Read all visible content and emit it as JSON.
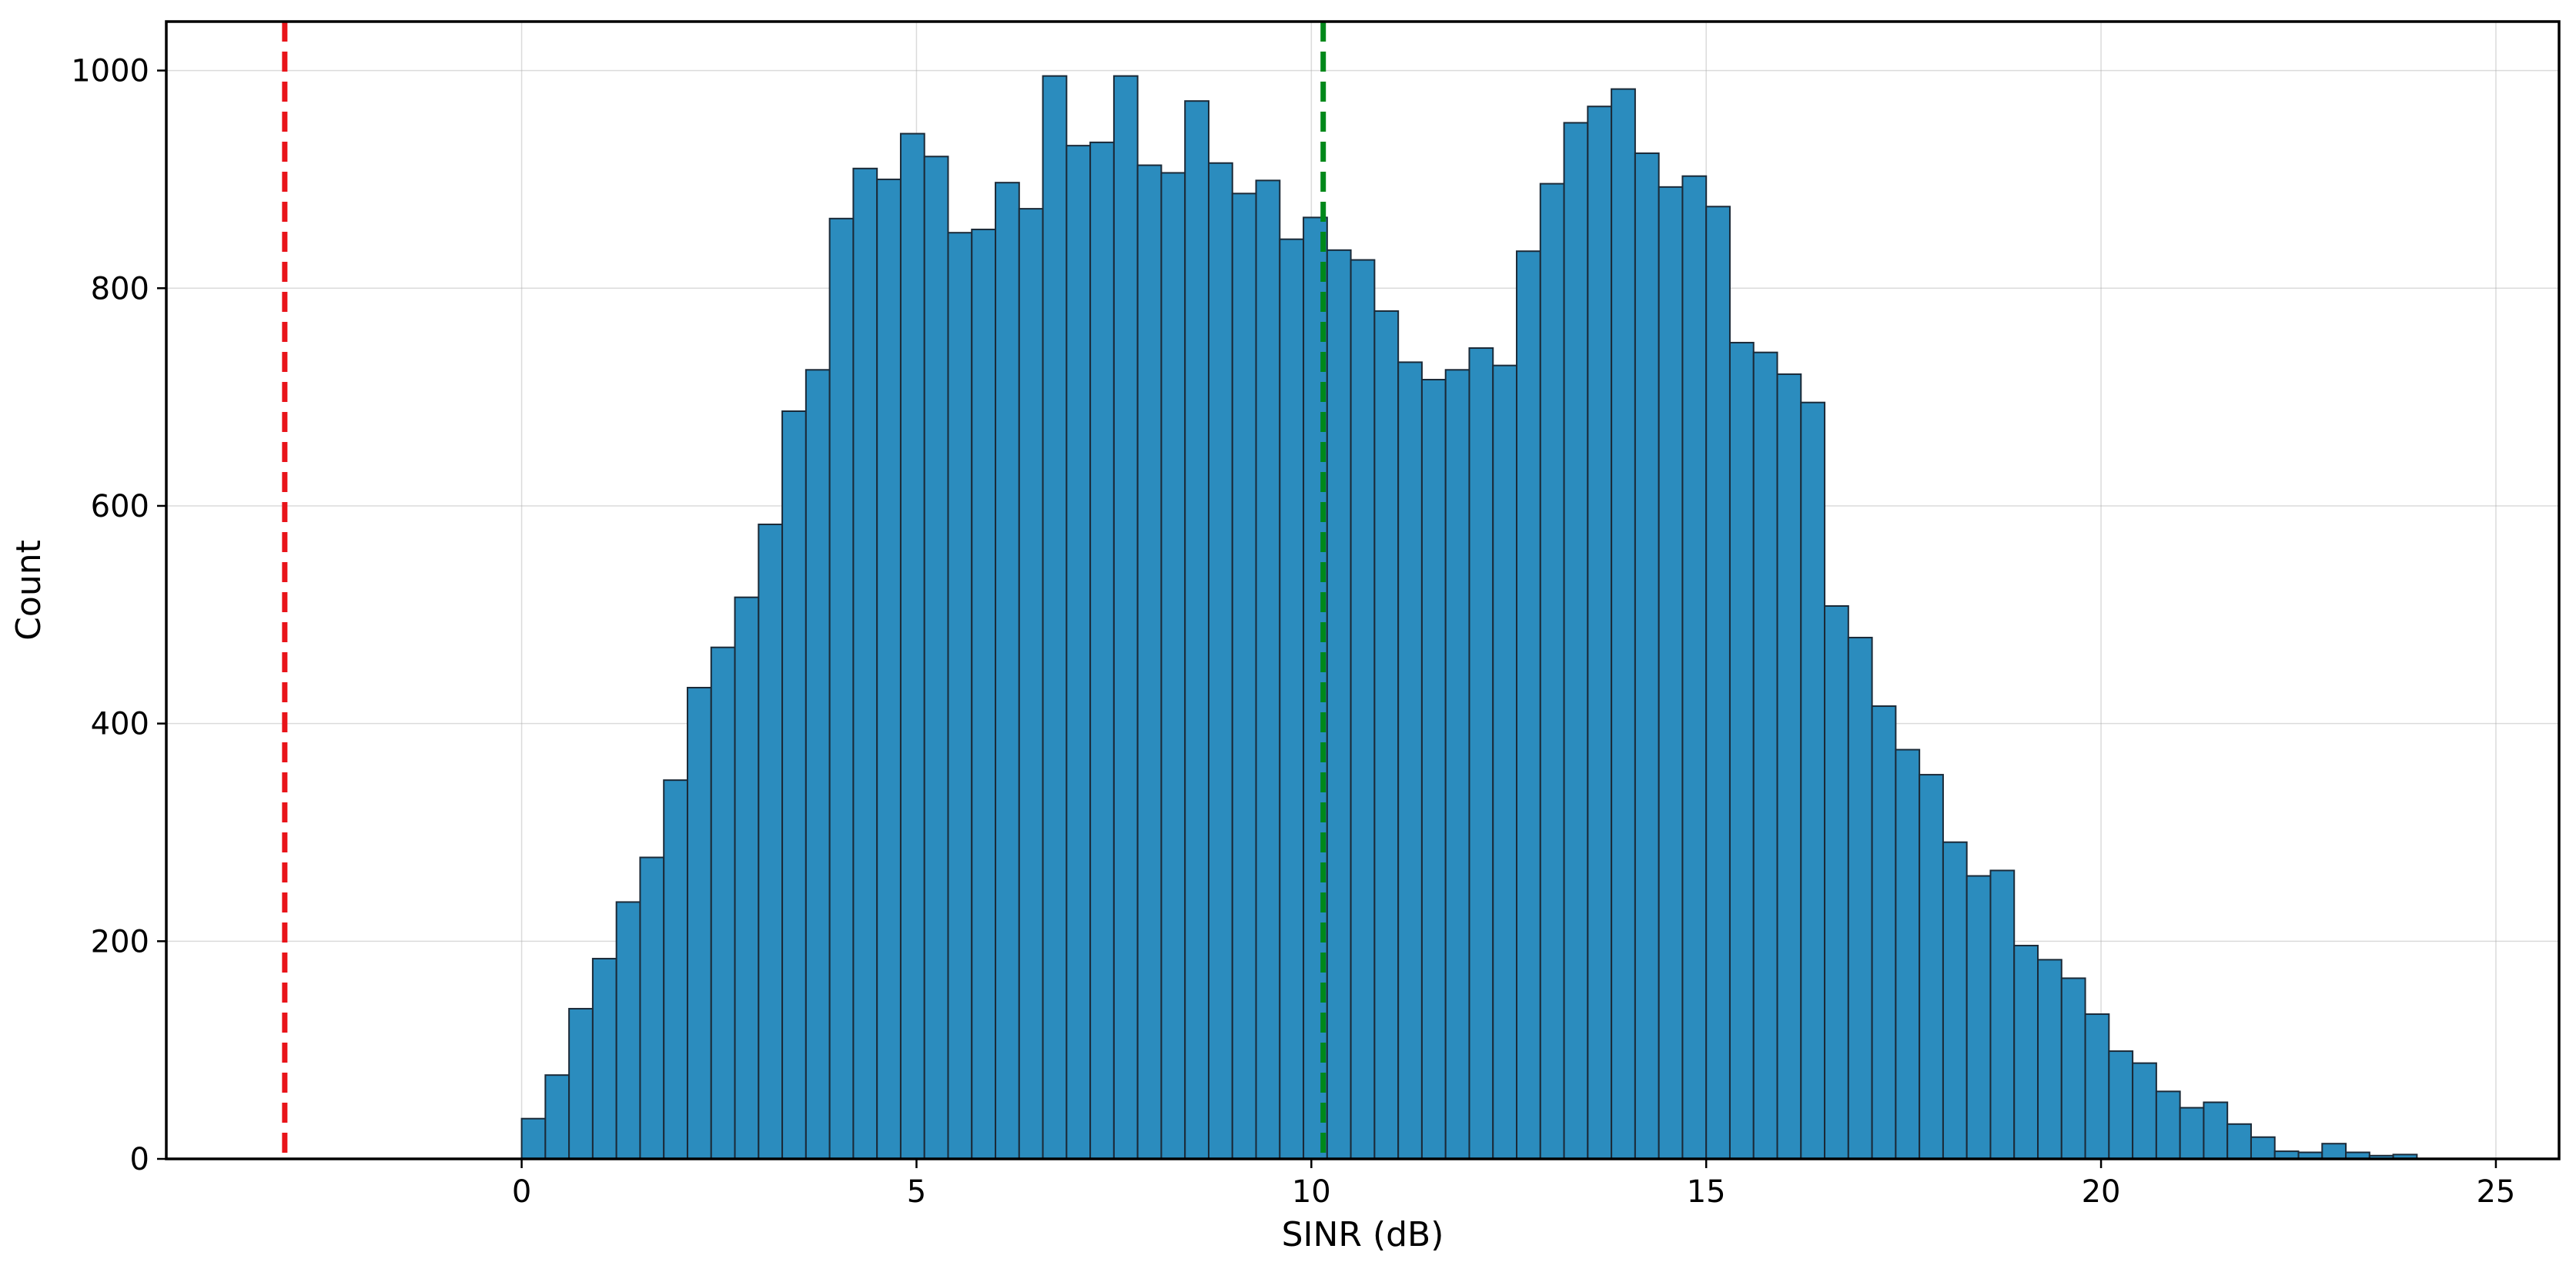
{
  "chart_data": {
    "type": "bar",
    "subtype": "histogram",
    "xlabel": "SINR (dB)",
    "ylabel": "Count",
    "xlim": [
      -4.5,
      25.8
    ],
    "ylim": [
      0,
      1045
    ],
    "grid": true,
    "x_ticks": [
      0,
      5,
      10,
      15,
      20,
      25
    ],
    "y_ticks": [
      0,
      200,
      400,
      600,
      800,
      1000
    ],
    "bin_start": 0.0,
    "bin_width": 0.3,
    "values": [
      37,
      77,
      138,
      184,
      236,
      277,
      348,
      433,
      470,
      516,
      583,
      687,
      725,
      864,
      910,
      900,
      942,
      921,
      851,
      854,
      897,
      873,
      995,
      931,
      934,
      995,
      913,
      906,
      972,
      915,
      887,
      899,
      845,
      865,
      835,
      826,
      779,
      732,
      716,
      725,
      745,
      729,
      834,
      896,
      952,
      967,
      983,
      924,
      893,
      903,
      875,
      750,
      741,
      721,
      695,
      508,
      479,
      416,
      376,
      353,
      291,
      260,
      265,
      196,
      183,
      166,
      133,
      99,
      88,
      62,
      47,
      52,
      32,
      20,
      7,
      6,
      14,
      6,
      3,
      4
    ],
    "reference_lines": [
      {
        "x": -3.0,
        "color": "#e8141a",
        "style": "dashed"
      },
      {
        "x": 10.15,
        "color": "#00881a",
        "style": "dashed"
      }
    ],
    "colors": {
      "bar_fill": "#2b8cbe",
      "bar_edge": "#1b2a38"
    }
  }
}
